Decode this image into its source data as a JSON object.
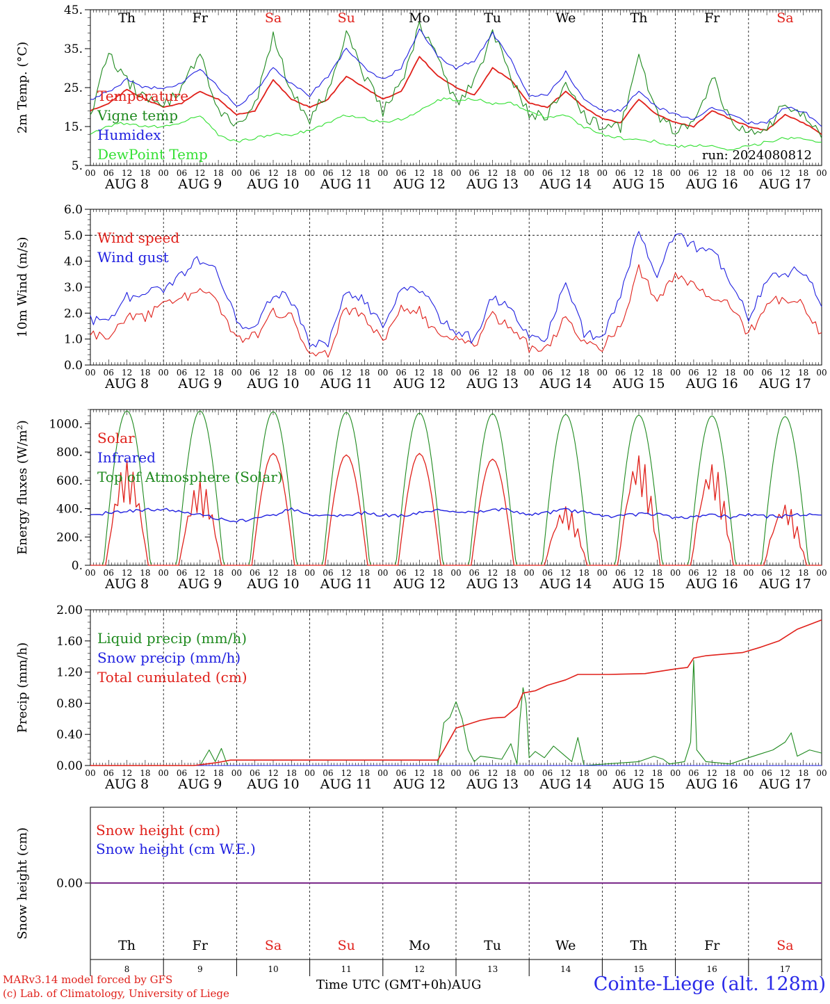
{
  "footer": {
    "model_line": "MARv3.14 model forced by GFS",
    "lab_line": "(c) Lab. of Climatology, University of Liege",
    "time_axis": "Time UTC (GMT+0h)AUG",
    "station": "Cointe-Liege (alt. 128m)"
  },
  "colors": {
    "red": "#e0201a",
    "green": "#1f8a1f",
    "blue": "#2020e0",
    "lightgreen": "#33e033",
    "purple": "#7a2a8a"
  },
  "x_axis": {
    "hour_ticks": [
      "00",
      "06",
      "12",
      "18"
    ],
    "end_tick": "00",
    "days": [
      {
        "date": "AUG  8",
        "weekday": "Th",
        "weekend": false,
        "num": "8"
      },
      {
        "date": "AUG  9",
        "weekday": "Fr",
        "weekend": false,
        "num": "9"
      },
      {
        "date": "AUG 10",
        "weekday": "Sa",
        "weekend": true,
        "num": "10"
      },
      {
        "date": "AUG 11",
        "weekday": "Su",
        "weekend": true,
        "num": "11"
      },
      {
        "date": "AUG 12",
        "weekday": "Mo",
        "weekend": false,
        "num": "12"
      },
      {
        "date": "AUG 13",
        "weekday": "Tu",
        "weekend": false,
        "num": "13"
      },
      {
        "date": "AUG 14",
        "weekday": "We",
        "weekend": false,
        "num": "14"
      },
      {
        "date": "AUG 15",
        "weekday": "Th",
        "weekend": false,
        "num": "15"
      },
      {
        "date": "AUG 16",
        "weekday": "Fr",
        "weekend": false,
        "num": "16"
      },
      {
        "date": "AUG 17",
        "weekday": "Sa",
        "weekend": true,
        "num": "17"
      }
    ]
  },
  "chart_data": [
    {
      "type": "line",
      "ylabel": "2m Temp. (°C)",
      "ylim": [
        5,
        45
      ],
      "yticks": [
        5,
        15,
        25,
        35,
        45
      ],
      "ytick_labels": [
        "5.",
        "15.",
        "25.",
        "35.",
        "45."
      ],
      "run_label": "run: 2024080812",
      "x_hours": [
        0,
        6,
        12,
        18,
        24,
        30,
        36,
        42,
        48,
        54,
        60,
        66,
        72,
        78,
        84,
        90,
        96,
        102,
        108,
        114,
        120,
        126,
        132,
        138,
        144,
        150,
        156,
        162,
        168,
        174,
        180,
        186,
        192,
        198,
        204,
        210,
        216,
        222,
        228,
        234,
        240
      ],
      "series": [
        {
          "name": "Temperature",
          "color": "red",
          "values": [
            19,
            21,
            24.5,
            22,
            20,
            21,
            24,
            22,
            18,
            19,
            27,
            22,
            20,
            22,
            28,
            25,
            22,
            24,
            33,
            28,
            25,
            23,
            30,
            27,
            21,
            20,
            24,
            20,
            17,
            16,
            22,
            18,
            16,
            15,
            19,
            17,
            15,
            14,
            18,
            16,
            13
          ]
        },
        {
          "name": "Vigne temp",
          "color": "green",
          "values": [
            18,
            34,
            27,
            22,
            20,
            25,
            33,
            20,
            15,
            20,
            38,
            24,
            17,
            24,
            40,
            28,
            19,
            26,
            41,
            32,
            21,
            26,
            40,
            27,
            18,
            18,
            25,
            18,
            15,
            15,
            33,
            18,
            14,
            15,
            28,
            17,
            13,
            14,
            21,
            18,
            12
          ]
        },
        {
          "name": "Humidex",
          "color": "blue",
          "values": [
            22,
            24,
            27,
            25,
            25,
            26,
            30,
            25,
            20,
            24,
            30,
            26,
            23,
            28,
            35,
            30,
            27,
            30,
            40,
            33,
            30,
            32,
            39,
            32,
            23,
            23,
            29,
            22,
            19,
            19,
            24,
            20,
            18,
            17,
            20,
            18,
            16,
            16,
            20,
            19,
            15
          ]
        },
        {
          "name": "DewPoint Temp",
          "color": "lightgreen",
          "values": [
            13,
            15,
            16,
            15,
            15,
            16,
            18,
            13,
            11,
            12,
            13,
            13,
            14,
            16,
            18,
            17,
            16,
            17,
            19,
            22,
            22,
            22,
            21,
            21,
            19,
            17,
            18,
            15,
            13,
            12,
            12,
            11,
            10,
            10,
            10,
            9,
            10,
            11,
            12,
            12,
            11
          ]
        }
      ]
    },
    {
      "type": "line",
      "ylabel": "10m Wind (m/s)",
      "ylim": [
        0,
        6
      ],
      "yticks": [
        0,
        1,
        2,
        3,
        4,
        5,
        6
      ],
      "ytick_labels": [
        "0.0",
        "1.0",
        "2.0",
        "3.0",
        "4.0",
        "5.0",
        "6.0"
      ],
      "x_hours": [
        0,
        6,
        12,
        18,
        24,
        30,
        36,
        42,
        48,
        54,
        60,
        66,
        72,
        78,
        84,
        90,
        96,
        102,
        108,
        114,
        120,
        126,
        132,
        138,
        144,
        150,
        156,
        162,
        168,
        174,
        180,
        186,
        192,
        198,
        204,
        210,
        216,
        222,
        228,
        234,
        240
      ],
      "series": [
        {
          "name": "Wind speed",
          "color": "red",
          "values": [
            1.2,
            1.1,
            1.9,
            1.8,
            2.3,
            2.5,
            3.0,
            2.4,
            1.0,
            1.1,
            2.1,
            1.8,
            0.6,
            0.5,
            2.2,
            1.8,
            0.9,
            2.1,
            2.1,
            1.1,
            1.0,
            0.8,
            1.9,
            1.5,
            0.7,
            0.6,
            1.9,
            0.8,
            0.7,
            1.5,
            3.7,
            2.5,
            3.6,
            3.1,
            2.7,
            2.2,
            1.2,
            2.3,
            2.6,
            2.4,
            1.2
          ]
        },
        {
          "name": "Wind gust",
          "color": "blue",
          "values": [
            1.7,
            1.6,
            2.6,
            2.8,
            3.0,
            3.5,
            4.1,
            3.6,
            1.6,
            1.6,
            2.8,
            2.5,
            0.8,
            0.8,
            2.8,
            2.5,
            1.4,
            2.9,
            3.0,
            1.9,
            1.3,
            1.0,
            2.6,
            2.2,
            1.0,
            1.1,
            3.3,
            1.2,
            1.1,
            2.8,
            5.2,
            3.5,
            5.0,
            4.6,
            4.4,
            3.3,
            1.9,
            3.3,
            3.6,
            3.6,
            2.4
          ]
        }
      ],
      "dashed_reference": 5.0
    },
    {
      "type": "line",
      "ylabel": "Energy fluxes (W/m²)",
      "ylim": [
        0,
        1100
      ],
      "yticks": [
        0,
        200,
        400,
        600,
        800,
        1000
      ],
      "ytick_labels": [
        "0.",
        "200.",
        "400.",
        "600.",
        "800.",
        "1000."
      ],
      "day_peaks": {
        "Solar": [
          740,
          600,
          790,
          780,
          790,
          750,
          420,
          790,
          730,
          440
        ],
        "Top of Atmosphere (Solar)": [
          1090,
          1090,
          1085,
          1080,
          1075,
          1070,
          1065,
          1060,
          1055,
          1050
        ]
      },
      "series": [
        {
          "name": "Solar",
          "color": "red"
        },
        {
          "name": "Infrared",
          "color": "blue",
          "values": [
            360,
            370,
            385,
            390,
            390,
            385,
            360,
            330,
            310,
            330,
            355,
            400,
            350,
            345,
            355,
            370,
            355,
            350,
            370,
            395,
            380,
            375,
            395,
            390,
            360,
            370,
            390,
            375,
            345,
            350,
            360,
            360,
            335,
            345,
            355,
            340,
            355,
            345,
            350,
            360,
            345
          ]
        },
        {
          "name": "Top of Atmosphere (Solar)",
          "color": "green"
        }
      ]
    },
    {
      "type": "line",
      "ylabel": "Precip (mm/h)",
      "ylim": [
        0,
        2
      ],
      "yticks": [
        0,
        0.4,
        0.8,
        1.2,
        1.6,
        2.0
      ],
      "ytick_labels": [
        "0.00",
        "0.40",
        "0.80",
        "1.20",
        "1.60",
        "2.00"
      ],
      "series": [
        {
          "name": "Liquid precip (mm/h)",
          "color": "green",
          "points": [
            [
              0,
              0
            ],
            [
              36,
              0
            ],
            [
              39,
              0.2
            ],
            [
              41,
              0.05
            ],
            [
              43,
              0.22
            ],
            [
              45,
              0
            ],
            [
              114,
              0
            ],
            [
              116,
              0.55
            ],
            [
              118,
              0.62
            ],
            [
              120,
              0.82
            ],
            [
              122,
              0.6
            ],
            [
              124,
              0.2
            ],
            [
              126,
              0.05
            ],
            [
              128,
              0.12
            ],
            [
              132,
              0.1
            ],
            [
              135,
              0.08
            ],
            [
              138,
              0.28
            ],
            [
              140,
              0.02
            ],
            [
              141,
              0.6
            ],
            [
              142,
              1.0
            ],
            [
              143,
              0.8
            ],
            [
              144,
              0.1
            ],
            [
              146,
              0.18
            ],
            [
              149,
              0.1
            ],
            [
              152,
              0.25
            ],
            [
              155,
              0.15
            ],
            [
              158,
              0.05
            ],
            [
              160,
              0.36
            ],
            [
              162,
              0
            ],
            [
              180,
              0.05
            ],
            [
              185,
              0.12
            ],
            [
              188,
              0.08
            ],
            [
              190,
              0.02
            ],
            [
              195,
              0.05
            ],
            [
              197,
              0.3
            ],
            [
              198,
              1.35
            ],
            [
              199,
              0.2
            ],
            [
              202,
              0.05
            ],
            [
              210,
              0.02
            ],
            [
              216,
              0.1
            ],
            [
              220,
              0.15
            ],
            [
              224,
              0.2
            ],
            [
              228,
              0.3
            ],
            [
              230,
              0.42
            ],
            [
              232,
              0.12
            ],
            [
              236,
              0.2
            ],
            [
              240,
              0.16
            ]
          ]
        },
        {
          "name": "Snow precip (mm/h)",
          "color": "blue",
          "points": [
            [
              0,
              0
            ],
            [
              240,
              0
            ]
          ]
        },
        {
          "name": "Total cumulated (cm)",
          "color": "red",
          "points": [
            [
              0,
              0
            ],
            [
              34,
              0
            ],
            [
              38,
              0.02
            ],
            [
              42,
              0.04
            ],
            [
              46,
              0.07
            ],
            [
              90,
              0.07
            ],
            [
              114,
              0.07
            ],
            [
              116,
              0.2
            ],
            [
              120,
              0.48
            ],
            [
              124,
              0.53
            ],
            [
              128,
              0.58
            ],
            [
              132,
              0.61
            ],
            [
              136,
              0.62
            ],
            [
              140,
              0.75
            ],
            [
              142,
              0.93
            ],
            [
              146,
              0.96
            ],
            [
              150,
              1.03
            ],
            [
              156,
              1.1
            ],
            [
              160,
              1.17
            ],
            [
              170,
              1.17
            ],
            [
              182,
              1.18
            ],
            [
              192,
              1.24
            ],
            [
              196,
              1.26
            ],
            [
              198,
              1.38
            ],
            [
              202,
              1.41
            ],
            [
              208,
              1.43
            ],
            [
              214,
              1.45
            ],
            [
              220,
              1.52
            ],
            [
              226,
              1.6
            ],
            [
              232,
              1.75
            ],
            [
              240,
              1.87
            ]
          ]
        }
      ]
    },
    {
      "type": "line",
      "ylabel": "Snow height (cm)",
      "yticks": [
        0
      ],
      "ytick_labels": [
        "0.00"
      ],
      "series": [
        {
          "name": "Snow height (cm)",
          "color": "red",
          "values": [
            0,
            0
          ]
        },
        {
          "name": "Snow height (cm W.E.)",
          "color": "blue",
          "values": [
            0,
            0
          ]
        }
      ]
    }
  ]
}
